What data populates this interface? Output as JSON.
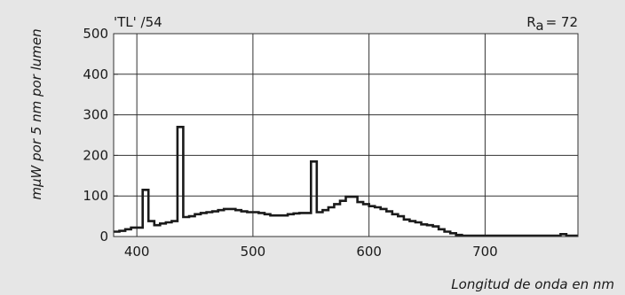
{
  "chart_data": {
    "type": "line",
    "lamp_label": "'TL' /54",
    "ra_symbol": "R",
    "ra_subscript": "a",
    "ra_value": "= 72",
    "xlabel": "Longitud de onda en nm",
    "ylabel": "mμW por 5 nm por lumen",
    "xlim": [
      380,
      780
    ],
    "ylim": [
      0,
      500
    ],
    "x_ticks": [
      400,
      500,
      600,
      700
    ],
    "y_ticks": [
      0,
      100,
      200,
      300,
      400,
      500
    ],
    "x_tick_labels": [
      "400",
      "500",
      "600",
      "700"
    ],
    "y_tick_labels": [
      "0",
      "100",
      "200",
      "300",
      "400",
      "500"
    ],
    "grid": true,
    "colors": {
      "background": "#e6e6e6",
      "plot_area": "#ffffff",
      "line": "#1a1a1a"
    },
    "bin_width_nm": 5,
    "series": [
      {
        "x": [
          380,
          385,
          390,
          395,
          400,
          405,
          410,
          415,
          420,
          425,
          430,
          435,
          440,
          445,
          450,
          455,
          460,
          465,
          470,
          475,
          480,
          485,
          490,
          495,
          500,
          505,
          510,
          515,
          520,
          525,
          530,
          535,
          540,
          545,
          550,
          555,
          560,
          565,
          570,
          575,
          580,
          585,
          590,
          595,
          600,
          605,
          610,
          615,
          620,
          625,
          630,
          635,
          640,
          645,
          650,
          655,
          660,
          665,
          670,
          675,
          680,
          685,
          690,
          695,
          700,
          705,
          710,
          715,
          720,
          725,
          730,
          735,
          740,
          745,
          750,
          755,
          760,
          765,
          770,
          775
        ],
        "values": [
          12,
          14,
          18,
          22,
          22,
          115,
          38,
          28,
          32,
          35,
          38,
          270,
          48,
          50,
          55,
          58,
          60,
          62,
          65,
          68,
          68,
          65,
          62,
          60,
          60,
          58,
          55,
          52,
          52,
          52,
          55,
          57,
          58,
          58,
          185,
          60,
          65,
          72,
          80,
          88,
          98,
          98,
          85,
          80,
          75,
          72,
          68,
          62,
          55,
          50,
          42,
          38,
          35,
          30,
          28,
          25,
          18,
          12,
          8,
          4,
          2,
          2,
          2,
          2,
          2,
          2,
          2,
          2,
          2,
          2,
          2,
          2,
          2,
          2,
          2,
          2,
          2,
          6,
          2,
          2
        ]
      }
    ]
  }
}
